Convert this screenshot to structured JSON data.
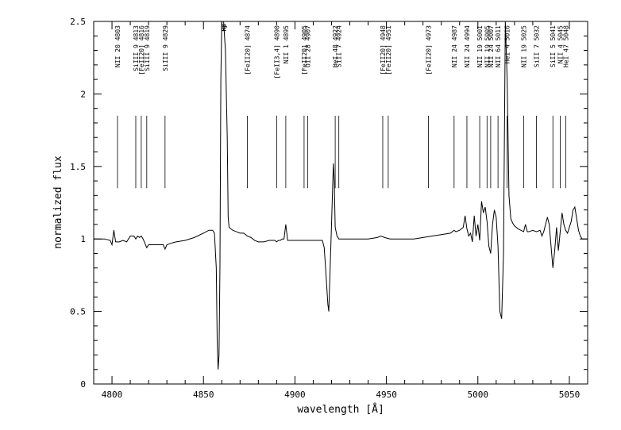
{
  "chart_data": {
    "type": "line",
    "title": "",
    "xlabel": "wavelength [Å]",
    "ylabel": "normalized flux",
    "xlim": [
      4790,
      5060
    ],
    "ylim": [
      0,
      2.5
    ],
    "x_ticks": [
      4800,
      4850,
      4900,
      4950,
      5000,
      5050
    ],
    "x_tick_labels": [
      "4800",
      "4850",
      "4900",
      "4950",
      "5000",
      "5050"
    ],
    "y_ticks": [
      0,
      0.5,
      1,
      1.5,
      2,
      2.5
    ],
    "y_tick_labels": [
      "0",
      "0.5",
      "1",
      "1.5",
      "2",
      "2.5"
    ],
    "grid": false,
    "series": [
      {
        "name": "",
        "color": "#000000",
        "x": [
          4790,
          4793,
          4796,
          4799,
          4800,
          4801,
          4802,
          4803,
          4804,
          4806,
          4808,
          4810,
          4812,
          4813,
          4814,
          4815,
          4816,
          4817,
          4818,
          4819,
          4820,
          4822,
          4825,
          4828,
          4829,
          4830,
          4832,
          4835,
          4840,
          4845,
          4850,
          4853,
          4855,
          4856,
          4857,
          4857.5,
          4858,
          4858.5,
          4859,
          4859.5,
          4860,
          4860.5,
          4861,
          4862,
          4863,
          4863.5,
          4864,
          4866,
          4868,
          4870,
          4872,
          4874,
          4876,
          4878,
          4880,
          4883,
          4886,
          4888,
          4889,
          4890,
          4891,
          4892,
          4893,
          4894,
          4895,
          4896,
          4897,
          4899,
          4902,
          4905,
          4907,
          4910,
          4913,
          4915,
          4916,
          4917,
          4918,
          4918.5,
          4919,
          4920,
          4921,
          4921.5,
          4922,
          4923,
          4924,
          4926,
          4930,
          4935,
          4940,
          4945,
          4947,
          4949,
          4952,
          4955,
          4960,
          4965,
          4970,
          4975,
          4980,
          4985,
          4987,
          4988,
          4990,
          4992,
          4993,
          4994,
          4995,
          4996,
          4997,
          4998,
          4999,
          5000,
          5001,
          5002,
          5003,
          5004,
          5005,
          5006,
          5007,
          5008,
          5009,
          5010,
          5011,
          5012,
          5013,
          5014,
          5015,
          5016,
          5017,
          5018,
          5019,
          5020,
          5022,
          5025,
          5026,
          5027,
          5028,
          5030,
          5032,
          5034,
          5035,
          5036,
          5037,
          5038,
          5039,
          5040,
          5041,
          5042,
          5043,
          5044,
          5045,
          5046,
          5047,
          5048,
          5049,
          5050,
          5051,
          5052,
          5053,
          5054,
          5055,
          5056,
          5057,
          5058,
          5060
        ],
        "y": [
          1.0,
          1.0,
          1.0,
          0.99,
          0.96,
          1.06,
          0.98,
          0.98,
          0.98,
          0.99,
          0.98,
          1.02,
          1.02,
          1.0,
          1.02,
          1.01,
          1.02,
          1.0,
          0.97,
          0.94,
          0.96,
          0.96,
          0.96,
          0.96,
          0.93,
          0.96,
          0.97,
          0.98,
          0.99,
          1.01,
          1.04,
          1.06,
          1.06,
          1.04,
          0.8,
          0.3,
          0.1,
          0.2,
          0.8,
          2.1,
          2.5,
          2.5,
          2.5,
          2.3,
          1.7,
          1.15,
          1.08,
          1.06,
          1.05,
          1.04,
          1.04,
          1.02,
          1.01,
          0.99,
          0.98,
          0.98,
          0.99,
          0.99,
          0.99,
          0.98,
          0.99,
          0.99,
          1.0,
          1.0,
          1.1,
          0.99,
          0.99,
          0.99,
          0.99,
          0.99,
          0.99,
          0.99,
          0.99,
          0.99,
          0.94,
          0.75,
          0.55,
          0.5,
          0.7,
          1.1,
          1.52,
          1.4,
          1.08,
          1.02,
          1.0,
          1.0,
          1.0,
          1.0,
          1.0,
          1.01,
          1.02,
          1.01,
          1.0,
          1.0,
          1.0,
          1.0,
          1.01,
          1.02,
          1.03,
          1.04,
          1.06,
          1.05,
          1.06,
          1.08,
          1.16,
          1.07,
          1.02,
          1.04,
          0.98,
          1.16,
          1.02,
          1.1,
          0.99,
          1.26,
          1.18,
          1.22,
          1.12,
          0.95,
          0.9,
          1.1,
          1.2,
          1.15,
          0.95,
          0.5,
          0.45,
          0.9,
          2.5,
          2.1,
          1.3,
          1.14,
          1.11,
          1.09,
          1.07,
          1.05,
          1.1,
          1.05,
          1.05,
          1.06,
          1.05,
          1.06,
          1.02,
          1.05,
          1.1,
          1.15,
          1.1,
          0.95,
          0.8,
          0.92,
          1.08,
          0.92,
          1.05,
          1.18,
          1.1,
          1.06,
          1.04,
          1.08,
          1.12,
          1.2,
          1.22,
          1.14,
          1.06,
          1.02,
          1.0,
          1.0,
          1.0
        ]
      }
    ],
    "markers": [
      {
        "x": 4803,
        "label": "NII 20 4803"
      },
      {
        "x": 4813,
        "label": "SiIII 9 4813"
      },
      {
        "x": 4816,
        "label": "[FeII20] 4816"
      },
      {
        "x": 4819,
        "label": "SiIII 9 4819"
      },
      {
        "x": 4829,
        "label": "SiIII 9 4829"
      },
      {
        "x": 4861,
        "label": "Hβ"
      },
      {
        "x": 4874,
        "label": "[FeII20] 4874"
      },
      {
        "x": 4890,
        "label": "[FeII3,4] 4890"
      },
      {
        "x": 4895,
        "label": "NII 1 4895"
      },
      {
        "x": 4905,
        "label": "[FeII20] 4905"
      },
      {
        "x": 4907,
        "label": "OII 28 4907"
      },
      {
        "x": 4922,
        "label": "HeI 48 4922"
      },
      {
        "x": 4924,
        "label": "SiII 7 4924"
      },
      {
        "x": 4948,
        "label": "[FeII20] 4948"
      },
      {
        "x": 4951,
        "label": "[FeII20] 4951"
      },
      {
        "x": 4973,
        "label": "[FeII20] 4973"
      },
      {
        "x": 4987,
        "label": "NII 24 4987"
      },
      {
        "x": 4994,
        "label": "NII 24 4994"
      },
      {
        "x": 5001,
        "label": "NII 19 5001"
      },
      {
        "x": 5005,
        "label": "NII 19 5005"
      },
      {
        "x": 5007,
        "label": "NII 24 5007"
      },
      {
        "x": 5011,
        "label": "NII 64 5011"
      },
      {
        "x": 5016,
        "label": "HeI 4 5016"
      },
      {
        "x": 5025,
        "label": "NII 19 5025"
      },
      {
        "x": 5032,
        "label": "SiII 7 5032"
      },
      {
        "x": 5041,
        "label": "SiII 5 5041"
      },
      {
        "x": 5045,
        "label": "NII 4 5045"
      },
      {
        "x": 5048,
        "label": "HeI 47 5048"
      }
    ]
  }
}
